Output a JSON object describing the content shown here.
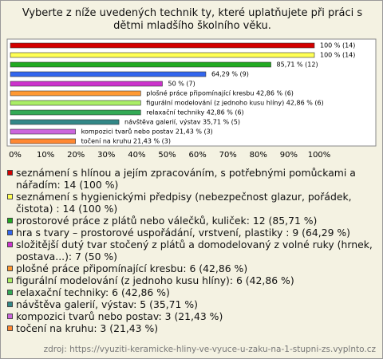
{
  "chart_data": {
    "type": "bar",
    "orientation": "horizontal",
    "title": "Vyberte z níže uvedených technik ty, které uplatňujete při práci s dětmi mladšího školního věku.",
    "categories": [
      "seznámení s hlínou a jejím zpracováním, s potřebnými pomůckami a nářadím: 14 (100 %)",
      "seznámení s hygienickými předpisy (nebezpečnost glazur, pořádek, čistota) : 14 (100 %)",
      "prostorové práce z plátů nebo válečků, kuliček: 12 (85,71 %)",
      "hra s tvary – prostorové uspořádání, vrstvení, plastiky : 9 (64,29 %)",
      "složitější dutý tvar stočený z plátů a domodelovaný z volné ruky (hrnek, postava...): 7 (50 %)",
      "plošné práce připomínající kresbu: 6 (42,86 %)",
      "figurální modelování (z jednoho kusu hlíny): 6 (42,86 %)",
      "relaxační techniky: 6 (42,86 %)",
      "návštěva galerií, výstav: 5 (35,71 %)",
      "kompozici tvarů nebo postav: 3 (21,43 %)",
      "točení na kruhu: 3 (21,43 %)"
    ],
    "values": [
      100,
      100,
      85.71,
      64.29,
      50,
      42.86,
      42.86,
      42.86,
      35.71,
      21.43,
      21.43
    ],
    "value_labels": [
      "100 % (14)",
      "100 % (14)",
      "85,71 % (12)",
      "64,29 % (9)",
      "50 % (7)",
      "plošné práce připomínající kresbu 42,86 % (6)",
      "figurální modelování (z jednoho kusu hlíny) 42,86 % (6)",
      "relaxační techniky 42,86 % (6)",
      "návštěva galerií, výstav 35,71 % (5)",
      "kompozici tvarů nebo postav 21,43 % (3)",
      "točení na kruhu 21,43 % (3)"
    ],
    "colors": [
      "#d40000",
      "#ffff55",
      "#22aa22",
      "#3366ee",
      "#cc33cc",
      "#ff9933",
      "#aaee66",
      "#33aa55",
      "#338888",
      "#cc66dd",
      "#ff8833"
    ],
    "xlim": [
      0,
      100
    ],
    "xticks": [
      {
        "value": 0,
        "label": "0%"
      },
      {
        "value": 10,
        "label": "10%"
      },
      {
        "value": 20,
        "label": "20%"
      },
      {
        "value": 30,
        "label": "30%"
      },
      {
        "value": 40,
        "label": "40%"
      },
      {
        "value": 50,
        "label": "50%"
      },
      {
        "value": 60,
        "label": "60%"
      },
      {
        "value": 70,
        "label": "70%"
      },
      {
        "value": 80,
        "label": "80%"
      },
      {
        "value": 90,
        "label": "90%"
      },
      {
        "value": 100,
        "label": "100%"
      }
    ],
    "grid": false,
    "source": "zdroj: https://vyuziti-keramicke-hliny-ve-vyuce-u-zaku-na-1-stupni-zs.vyplnto.cz"
  }
}
